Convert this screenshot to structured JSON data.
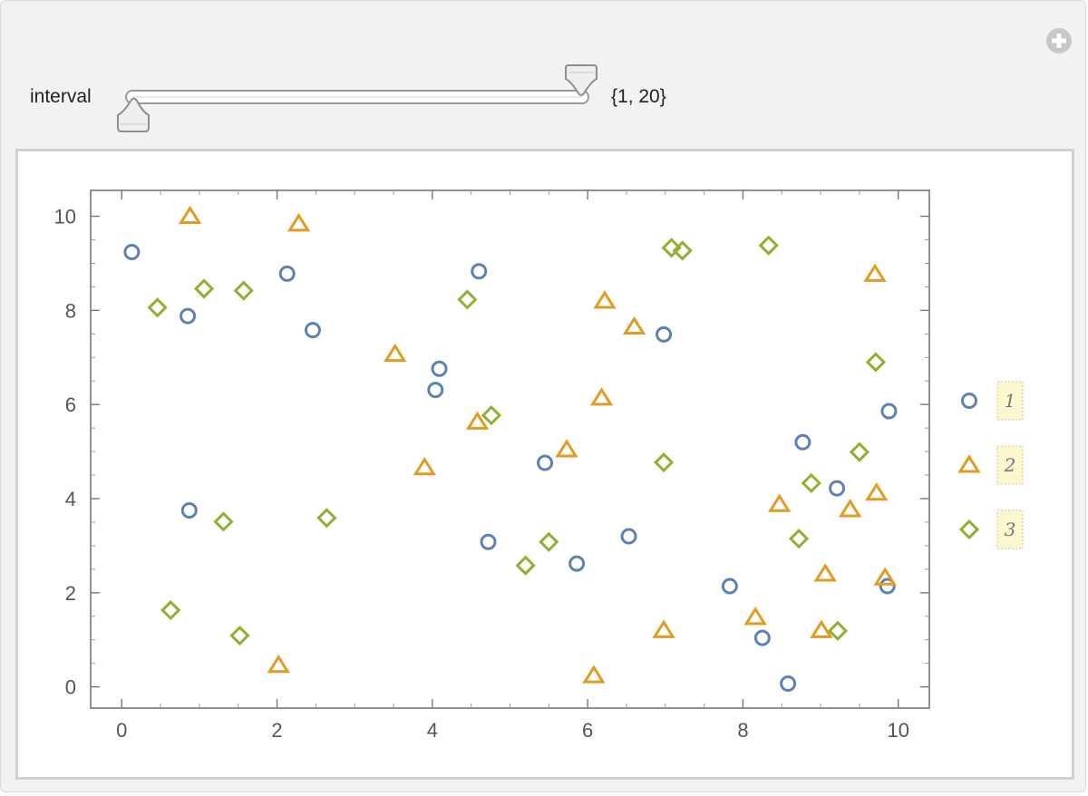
{
  "manipulate": {
    "control_label": "interval",
    "control_value": "{1, 20}",
    "slider_range": [
      1,
      20
    ],
    "add_icon": "plus-circle-icon"
  },
  "chart_data": {
    "type": "scatter",
    "xlim": [
      -0.4,
      10.4
    ],
    "ylim": [
      -0.45,
      10.55
    ],
    "x_ticks": [
      0,
      2,
      4,
      6,
      8,
      10
    ],
    "y_ticks": [
      0,
      2,
      4,
      6,
      8,
      10
    ],
    "frame": true,
    "grid": false,
    "legend_position": "right",
    "series": [
      {
        "name": "1",
        "marker": "circle",
        "color": "#5E81B5",
        "points": [
          [
            0.13,
            9.24
          ],
          [
            0.85,
            7.88
          ],
          [
            0.87,
            3.75
          ],
          [
            2.13,
            8.78
          ],
          [
            2.46,
            7.58
          ],
          [
            4.04,
            6.31
          ],
          [
            4.09,
            6.76
          ],
          [
            4.6,
            8.83
          ],
          [
            4.72,
            3.08
          ],
          [
            5.45,
            4.76
          ],
          [
            5.86,
            2.62
          ],
          [
            6.53,
            3.2
          ],
          [
            6.98,
            7.49
          ],
          [
            7.83,
            2.14
          ],
          [
            8.25,
            1.04
          ],
          [
            8.58,
            0.07
          ],
          [
            8.77,
            5.2
          ],
          [
            9.21,
            4.22
          ],
          [
            9.88,
            5.86
          ],
          [
            9.86,
            2.14
          ]
        ]
      },
      {
        "name": "2",
        "marker": "triangle",
        "color": "#E19C24",
        "points": [
          [
            0.88,
            10.0
          ],
          [
            2.28,
            9.84
          ],
          [
            3.52,
            7.07
          ],
          [
            3.9,
            4.66
          ],
          [
            4.58,
            5.63
          ],
          [
            5.73,
            5.04
          ],
          [
            6.08,
            0.24
          ],
          [
            6.18,
            6.14
          ],
          [
            6.22,
            8.2
          ],
          [
            6.6,
            7.65
          ],
          [
            6.98,
            1.2
          ],
          [
            8.16,
            1.48
          ],
          [
            8.47,
            3.88
          ],
          [
            9.01,
            1.2
          ],
          [
            9.06,
            2.4
          ],
          [
            9.38,
            3.77
          ],
          [
            9.7,
            8.77
          ],
          [
            9.72,
            4.12
          ],
          [
            9.83,
            2.32
          ],
          [
            2.02,
            0.46
          ]
        ]
      },
      {
        "name": "3",
        "marker": "diamond",
        "color": "#8FB032",
        "points": [
          [
            0.46,
            8.06
          ],
          [
            0.63,
            1.63
          ],
          [
            1.06,
            8.46
          ],
          [
            1.31,
            3.51
          ],
          [
            1.52,
            1.09
          ],
          [
            1.57,
            8.42
          ],
          [
            2.64,
            3.59
          ],
          [
            4.45,
            8.23
          ],
          [
            4.76,
            5.77
          ],
          [
            5.2,
            2.58
          ],
          [
            5.5,
            3.08
          ],
          [
            6.98,
            4.77
          ],
          [
            7.08,
            9.33
          ],
          [
            7.22,
            9.27
          ],
          [
            8.33,
            9.38
          ],
          [
            8.72,
            3.15
          ],
          [
            8.88,
            4.33
          ],
          [
            9.22,
            1.19
          ],
          [
            9.5,
            4.99
          ],
          [
            9.71,
            6.9
          ]
        ]
      }
    ]
  }
}
